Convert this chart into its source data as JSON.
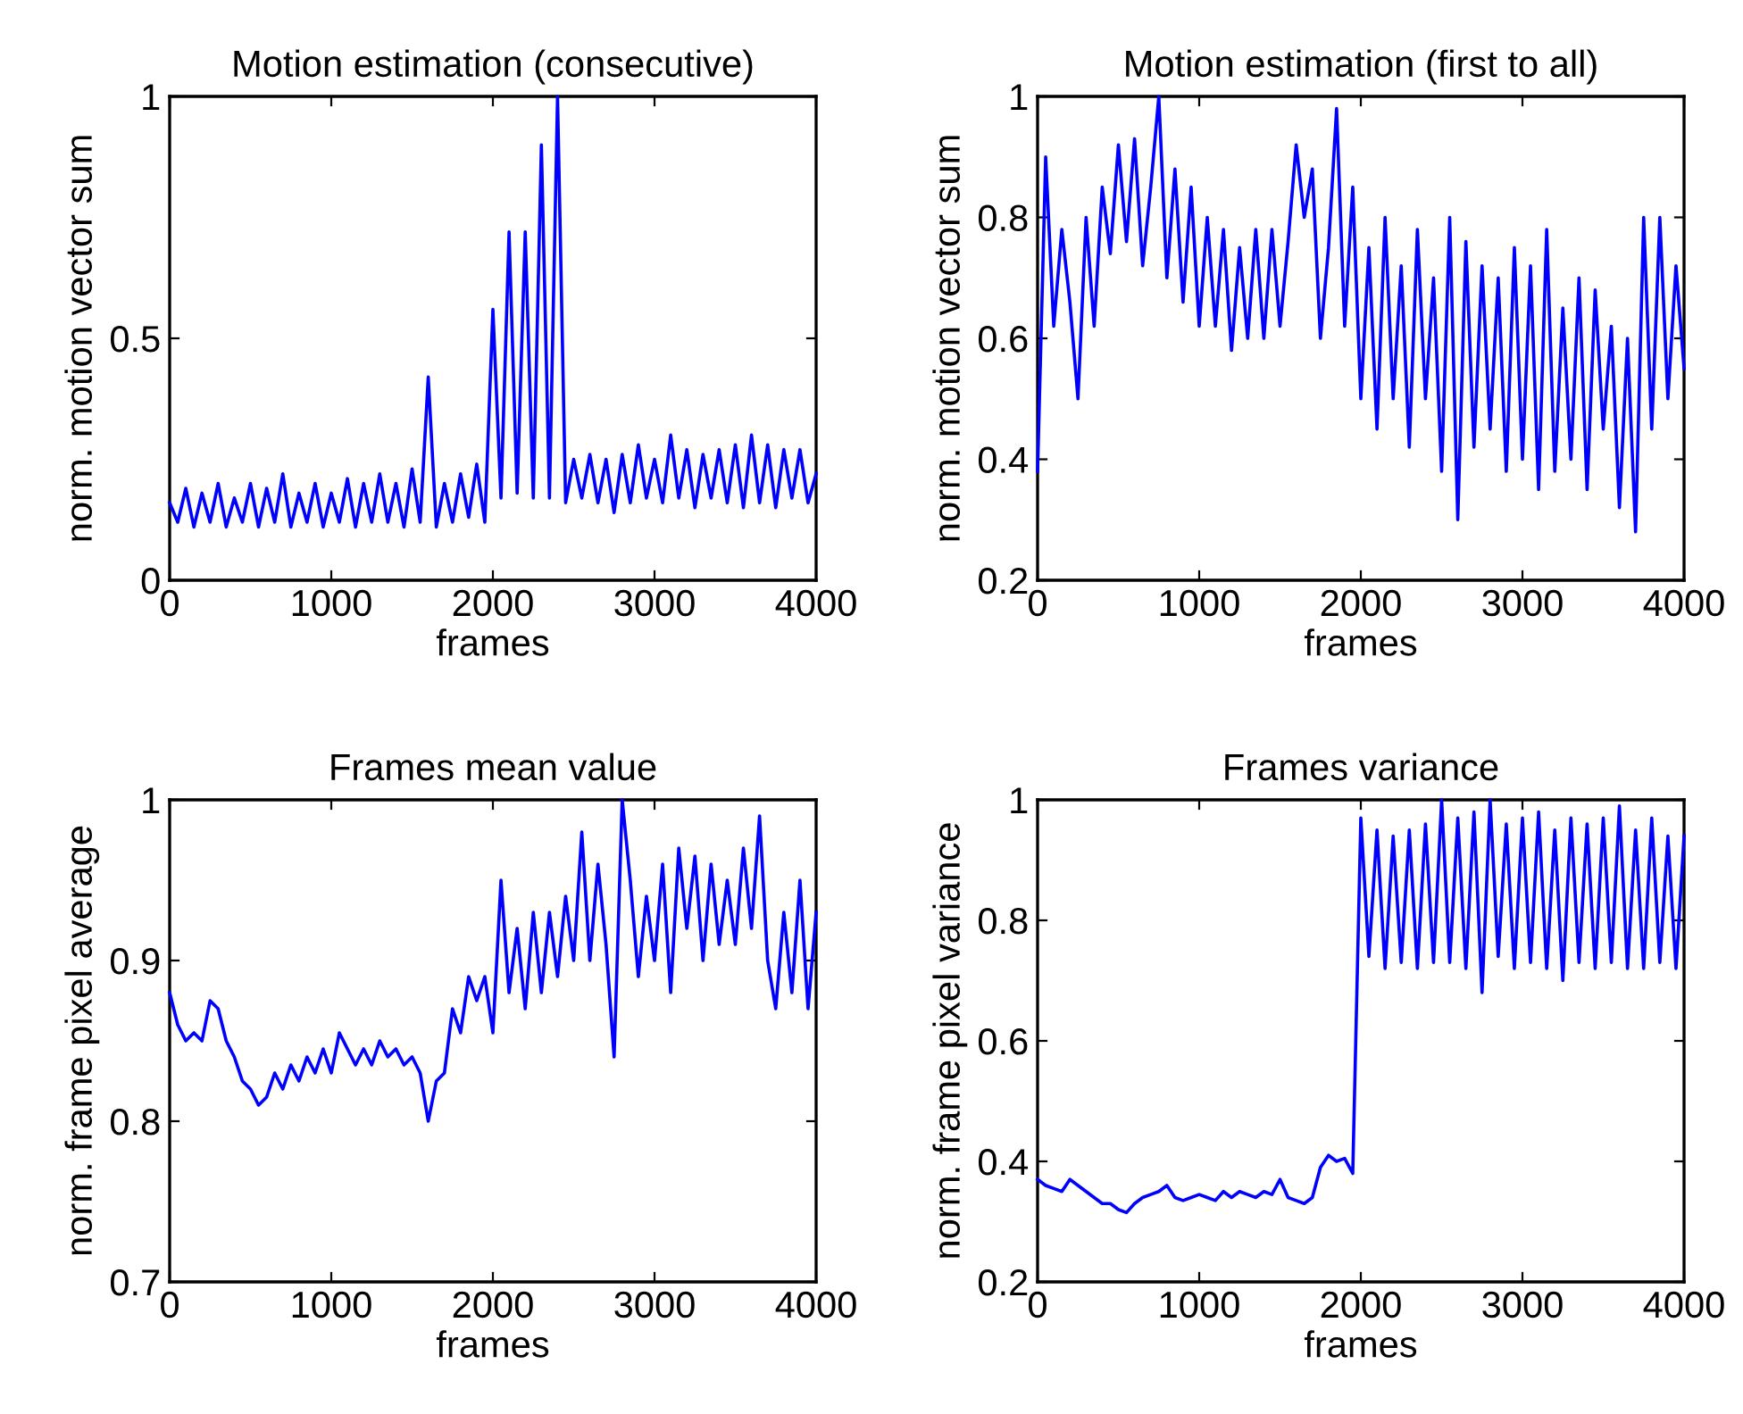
{
  "chart_data": [
    {
      "type": "line",
      "title": "Motion estimation (consecutive)",
      "xlabel": "frames",
      "ylabel": "norm. motion vector sum",
      "xlim": [
        0,
        4000
      ],
      "xticks": [
        0,
        1000,
        2000,
        3000,
        4000
      ],
      "ylim": [
        0,
        1
      ],
      "yticks": [
        0,
        0.5,
        1
      ],
      "x": [
        0,
        50,
        100,
        150,
        200,
        250,
        300,
        350,
        400,
        450,
        500,
        550,
        600,
        650,
        700,
        750,
        800,
        850,
        900,
        950,
        1000,
        1050,
        1100,
        1150,
        1200,
        1250,
        1300,
        1350,
        1400,
        1450,
        1500,
        1550,
        1600,
        1650,
        1700,
        1750,
        1800,
        1850,
        1900,
        1950,
        2000,
        2050,
        2100,
        2150,
        2200,
        2250,
        2300,
        2350,
        2400,
        2450,
        2500,
        2550,
        2600,
        2650,
        2700,
        2750,
        2800,
        2850,
        2900,
        2950,
        3000,
        3050,
        3100,
        3150,
        3200,
        3250,
        3300,
        3350,
        3400,
        3450,
        3500,
        3550,
        3600,
        3650,
        3700,
        3750,
        3800,
        3850,
        3900,
        3950,
        4000
      ],
      "series": [
        {
          "color": "#0000ff",
          "values": [
            0.16,
            0.12,
            0.19,
            0.11,
            0.18,
            0.12,
            0.2,
            0.11,
            0.17,
            0.12,
            0.2,
            0.11,
            0.19,
            0.12,
            0.22,
            0.11,
            0.18,
            0.12,
            0.2,
            0.11,
            0.18,
            0.12,
            0.21,
            0.11,
            0.2,
            0.12,
            0.22,
            0.12,
            0.2,
            0.11,
            0.23,
            0.12,
            0.42,
            0.11,
            0.2,
            0.12,
            0.22,
            0.13,
            0.24,
            0.12,
            0.56,
            0.17,
            0.72,
            0.18,
            0.72,
            0.17,
            0.9,
            0.17,
            1.0,
            0.16,
            0.25,
            0.17,
            0.26,
            0.16,
            0.25,
            0.14,
            0.26,
            0.16,
            0.28,
            0.17,
            0.25,
            0.16,
            0.3,
            0.17,
            0.27,
            0.15,
            0.26,
            0.17,
            0.27,
            0.16,
            0.28,
            0.15,
            0.3,
            0.16,
            0.28,
            0.15,
            0.27,
            0.17,
            0.27,
            0.16,
            0.22
          ]
        }
      ]
    },
    {
      "type": "line",
      "title": "Motion estimation (first to all)",
      "xlabel": "frames",
      "ylabel": "norm. motion vector sum",
      "xlim": [
        0,
        4000
      ],
      "xticks": [
        0,
        1000,
        2000,
        3000,
        4000
      ],
      "ylim": [
        0.2,
        1
      ],
      "yticks": [
        0.2,
        0.4,
        0.6,
        0.8,
        1
      ],
      "x": [
        0,
        50,
        100,
        150,
        200,
        250,
        300,
        350,
        400,
        450,
        500,
        550,
        600,
        650,
        700,
        750,
        800,
        850,
        900,
        950,
        1000,
        1050,
        1100,
        1150,
        1200,
        1250,
        1300,
        1350,
        1400,
        1450,
        1500,
        1550,
        1600,
        1650,
        1700,
        1750,
        1800,
        1850,
        1900,
        1950,
        2000,
        2050,
        2100,
        2150,
        2200,
        2250,
        2300,
        2350,
        2400,
        2450,
        2500,
        2550,
        2600,
        2650,
        2700,
        2750,
        2800,
        2850,
        2900,
        2950,
        3000,
        3050,
        3100,
        3150,
        3200,
        3250,
        3300,
        3350,
        3400,
        3450,
        3500,
        3550,
        3600,
        3650,
        3700,
        3750,
        3800,
        3850,
        3900,
        3950,
        4000
      ],
      "series": [
        {
          "color": "#0000ff",
          "values": [
            0.38,
            0.9,
            0.62,
            0.78,
            0.66,
            0.5,
            0.8,
            0.62,
            0.85,
            0.74,
            0.92,
            0.76,
            0.93,
            0.72,
            0.85,
            1.0,
            0.7,
            0.88,
            0.66,
            0.85,
            0.62,
            0.8,
            0.62,
            0.78,
            0.58,
            0.75,
            0.6,
            0.78,
            0.6,
            0.78,
            0.62,
            0.76,
            0.92,
            0.8,
            0.88,
            0.6,
            0.75,
            0.98,
            0.62,
            0.85,
            0.5,
            0.75,
            0.45,
            0.8,
            0.5,
            0.72,
            0.42,
            0.78,
            0.5,
            0.7,
            0.38,
            0.8,
            0.3,
            0.76,
            0.42,
            0.72,
            0.45,
            0.7,
            0.38,
            0.75,
            0.4,
            0.72,
            0.35,
            0.78,
            0.38,
            0.65,
            0.4,
            0.7,
            0.35,
            0.68,
            0.45,
            0.62,
            0.32,
            0.6,
            0.28,
            0.8,
            0.45,
            0.8,
            0.5,
            0.72,
            0.55
          ]
        }
      ]
    },
    {
      "type": "line",
      "title": "Frames mean value",
      "xlabel": "frames",
      "ylabel": "norm. frame pixel average",
      "xlim": [
        0,
        4000
      ],
      "xticks": [
        0,
        1000,
        2000,
        3000,
        4000
      ],
      "ylim": [
        0.7,
        1
      ],
      "yticks": [
        0.7,
        0.8,
        0.9,
        1
      ],
      "x": [
        0,
        50,
        100,
        150,
        200,
        250,
        300,
        350,
        400,
        450,
        500,
        550,
        600,
        650,
        700,
        750,
        800,
        850,
        900,
        950,
        1000,
        1050,
        1100,
        1150,
        1200,
        1250,
        1300,
        1350,
        1400,
        1450,
        1500,
        1550,
        1600,
        1650,
        1700,
        1750,
        1800,
        1850,
        1900,
        1950,
        2000,
        2050,
        2100,
        2150,
        2200,
        2250,
        2300,
        2350,
        2400,
        2450,
        2500,
        2550,
        2600,
        2650,
        2700,
        2750,
        2800,
        2850,
        2900,
        2950,
        3000,
        3050,
        3100,
        3150,
        3200,
        3250,
        3300,
        3350,
        3400,
        3450,
        3500,
        3550,
        3600,
        3650,
        3700,
        3750,
        3800,
        3850,
        3900,
        3950,
        4000
      ],
      "series": [
        {
          "color": "#0000ff",
          "values": [
            0.88,
            0.86,
            0.85,
            0.855,
            0.85,
            0.875,
            0.87,
            0.85,
            0.84,
            0.825,
            0.82,
            0.81,
            0.815,
            0.83,
            0.82,
            0.835,
            0.825,
            0.84,
            0.83,
            0.845,
            0.83,
            0.855,
            0.845,
            0.835,
            0.845,
            0.835,
            0.85,
            0.84,
            0.845,
            0.835,
            0.84,
            0.83,
            0.8,
            0.825,
            0.83,
            0.87,
            0.855,
            0.89,
            0.875,
            0.89,
            0.855,
            0.95,
            0.88,
            0.92,
            0.87,
            0.93,
            0.88,
            0.93,
            0.89,
            0.94,
            0.9,
            0.98,
            0.9,
            0.96,
            0.91,
            0.84,
            1.0,
            0.95,
            0.89,
            0.94,
            0.9,
            0.96,
            0.88,
            0.97,
            0.92,
            0.965,
            0.9,
            0.96,
            0.91,
            0.95,
            0.91,
            0.97,
            0.92,
            0.99,
            0.9,
            0.87,
            0.93,
            0.88,
            0.95,
            0.87,
            0.93
          ]
        }
      ]
    },
    {
      "type": "line",
      "title": "Frames variance",
      "xlabel": "frames",
      "ylabel": "norm. frame pixel variance",
      "xlim": [
        0,
        4000
      ],
      "xticks": [
        0,
        1000,
        2000,
        3000,
        4000
      ],
      "ylim": [
        0.2,
        1
      ],
      "yticks": [
        0.2,
        0.4,
        0.6,
        0.8,
        1
      ],
      "x": [
        0,
        50,
        100,
        150,
        200,
        250,
        300,
        350,
        400,
        450,
        500,
        550,
        600,
        650,
        700,
        750,
        800,
        850,
        900,
        950,
        1000,
        1050,
        1100,
        1150,
        1200,
        1250,
        1300,
        1350,
        1400,
        1450,
        1500,
        1550,
        1600,
        1650,
        1700,
        1750,
        1800,
        1850,
        1900,
        1950,
        2000,
        2050,
        2100,
        2150,
        2200,
        2250,
        2300,
        2350,
        2400,
        2450,
        2500,
        2550,
        2600,
        2650,
        2700,
        2750,
        2800,
        2850,
        2900,
        2950,
        3000,
        3050,
        3100,
        3150,
        3200,
        3250,
        3300,
        3350,
        3400,
        3450,
        3500,
        3550,
        3600,
        3650,
        3700,
        3750,
        3800,
        3850,
        3900,
        3950,
        4000
      ],
      "series": [
        {
          "color": "#0000ff",
          "values": [
            0.37,
            0.36,
            0.355,
            0.35,
            0.37,
            0.36,
            0.35,
            0.34,
            0.33,
            0.33,
            0.32,
            0.315,
            0.33,
            0.34,
            0.345,
            0.35,
            0.36,
            0.34,
            0.335,
            0.34,
            0.345,
            0.34,
            0.335,
            0.35,
            0.34,
            0.35,
            0.345,
            0.34,
            0.35,
            0.345,
            0.37,
            0.34,
            0.335,
            0.33,
            0.34,
            0.39,
            0.41,
            0.4,
            0.405,
            0.38,
            0.97,
            0.74,
            0.95,
            0.72,
            0.94,
            0.73,
            0.95,
            0.72,
            0.96,
            0.73,
            1.0,
            0.73,
            0.97,
            0.72,
            0.98,
            0.68,
            1.0,
            0.74,
            0.96,
            0.72,
            0.97,
            0.73,
            0.98,
            0.72,
            0.95,
            0.7,
            0.97,
            0.73,
            0.96,
            0.72,
            0.97,
            0.73,
            0.99,
            0.72,
            0.95,
            0.72,
            0.97,
            0.73,
            0.94,
            0.72,
            0.94
          ]
        }
      ]
    }
  ]
}
